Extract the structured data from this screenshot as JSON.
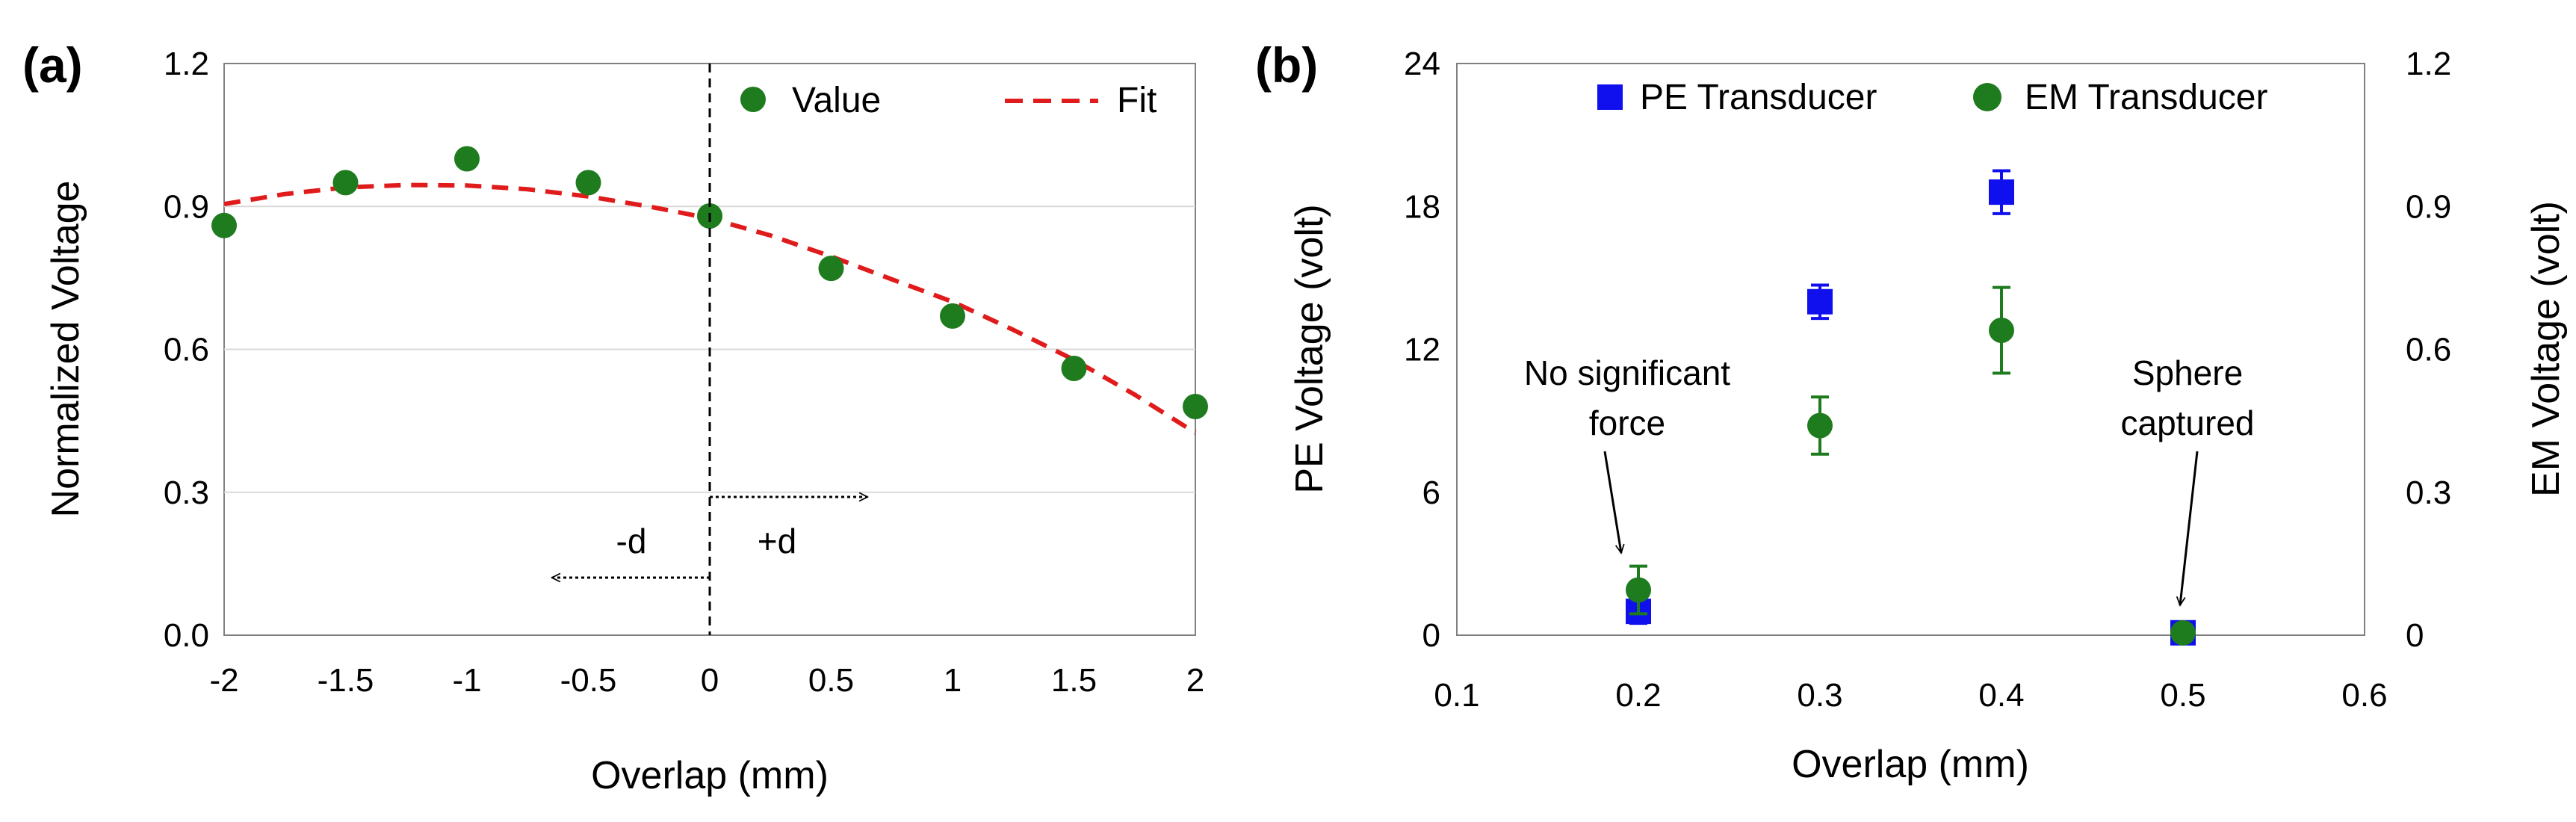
{
  "chart_data": [
    {
      "panel_label": "(a)",
      "type": "scatter",
      "xlabel": "Overlap (mm)",
      "ylabel": "Normalized Voltage",
      "xlim": [
        -2,
        2
      ],
      "ylim": [
        0,
        1.2
      ],
      "xticks": [
        "-2",
        "-1.5",
        "-1",
        "-0.5",
        "0",
        "0.5",
        "1",
        "1.5",
        "2"
      ],
      "yticks": [
        "0.0",
        "0.3",
        "0.6",
        "0.9",
        "1.2"
      ],
      "legend": {
        "value": "Value",
        "fit": "Fit",
        "placement": "top-right"
      },
      "series": [
        {
          "name": "Value",
          "color": "#1e7b1e",
          "x": [
            -2,
            -1.5,
            -1,
            -0.5,
            0,
            0.5,
            1,
            1.5,
            2
          ],
          "y": [
            0.86,
            0.95,
            1.0,
            0.95,
            0.88,
            0.77,
            0.67,
            0.56,
            0.48
          ]
        },
        {
          "name": "Fit",
          "color": "#e01b1b",
          "style": "dashed",
          "x": [
            -2,
            -1.75,
            -1.5,
            -1.25,
            -1,
            -0.75,
            -0.5,
            -0.25,
            0,
            0.25,
            0.5,
            0.75,
            1,
            1.25,
            1.5,
            1.75,
            2
          ],
          "y": [
            0.905,
            0.926,
            0.94,
            0.945,
            0.944,
            0.936,
            0.921,
            0.9,
            0.875,
            0.839,
            0.795,
            0.747,
            0.7,
            0.641,
            0.578,
            0.505,
            0.425
          ]
        }
      ],
      "annotations": {
        "minus_d": "-d",
        "plus_d": "+d"
      }
    },
    {
      "panel_label": "(b)",
      "type": "scatter",
      "xlabel": "Overlap (mm)",
      "ylabel_left": "PE Voltage (volt)",
      "ylabel_right": "EM Voltage (volt)",
      "xlim": [
        0.1,
        0.6
      ],
      "ylim_left": [
        0,
        24
      ],
      "ylim_right": [
        0,
        1.2
      ],
      "xticks": [
        "0.1",
        "0.2",
        "0.3",
        "0.4",
        "0.5",
        "0.6"
      ],
      "yticks_left": [
        "0",
        "6",
        "12",
        "18",
        "24"
      ],
      "yticks_right": [
        "0",
        "0.3",
        "0.6",
        "0.9",
        "1.2"
      ],
      "legend": {
        "pe": "PE Transducer",
        "em": "EM Transducer",
        "placement": "top"
      },
      "series": [
        {
          "name": "PE Transducer",
          "axis": "left",
          "marker": "square",
          "color": "#1010ee",
          "x": [
            0.2,
            0.3,
            0.4,
            0.5
          ],
          "y": [
            1.0,
            14.0,
            18.6,
            0.1
          ],
          "err": [
            0.5,
            0.7,
            0.9,
            0
          ]
        },
        {
          "name": "EM Transducer",
          "axis": "right",
          "marker": "circle",
          "color": "#1e7b1e",
          "x": [
            0.2,
            0.3,
            0.4,
            0.5
          ],
          "y": [
            0.095,
            0.44,
            0.64,
            0.005
          ],
          "err": [
            0.05,
            0.06,
            0.09,
            0
          ]
        }
      ],
      "annotations": {
        "no_force_1": "No significant",
        "no_force_2": "force",
        "captured_1": "Sphere",
        "captured_2": "captured"
      }
    }
  ]
}
